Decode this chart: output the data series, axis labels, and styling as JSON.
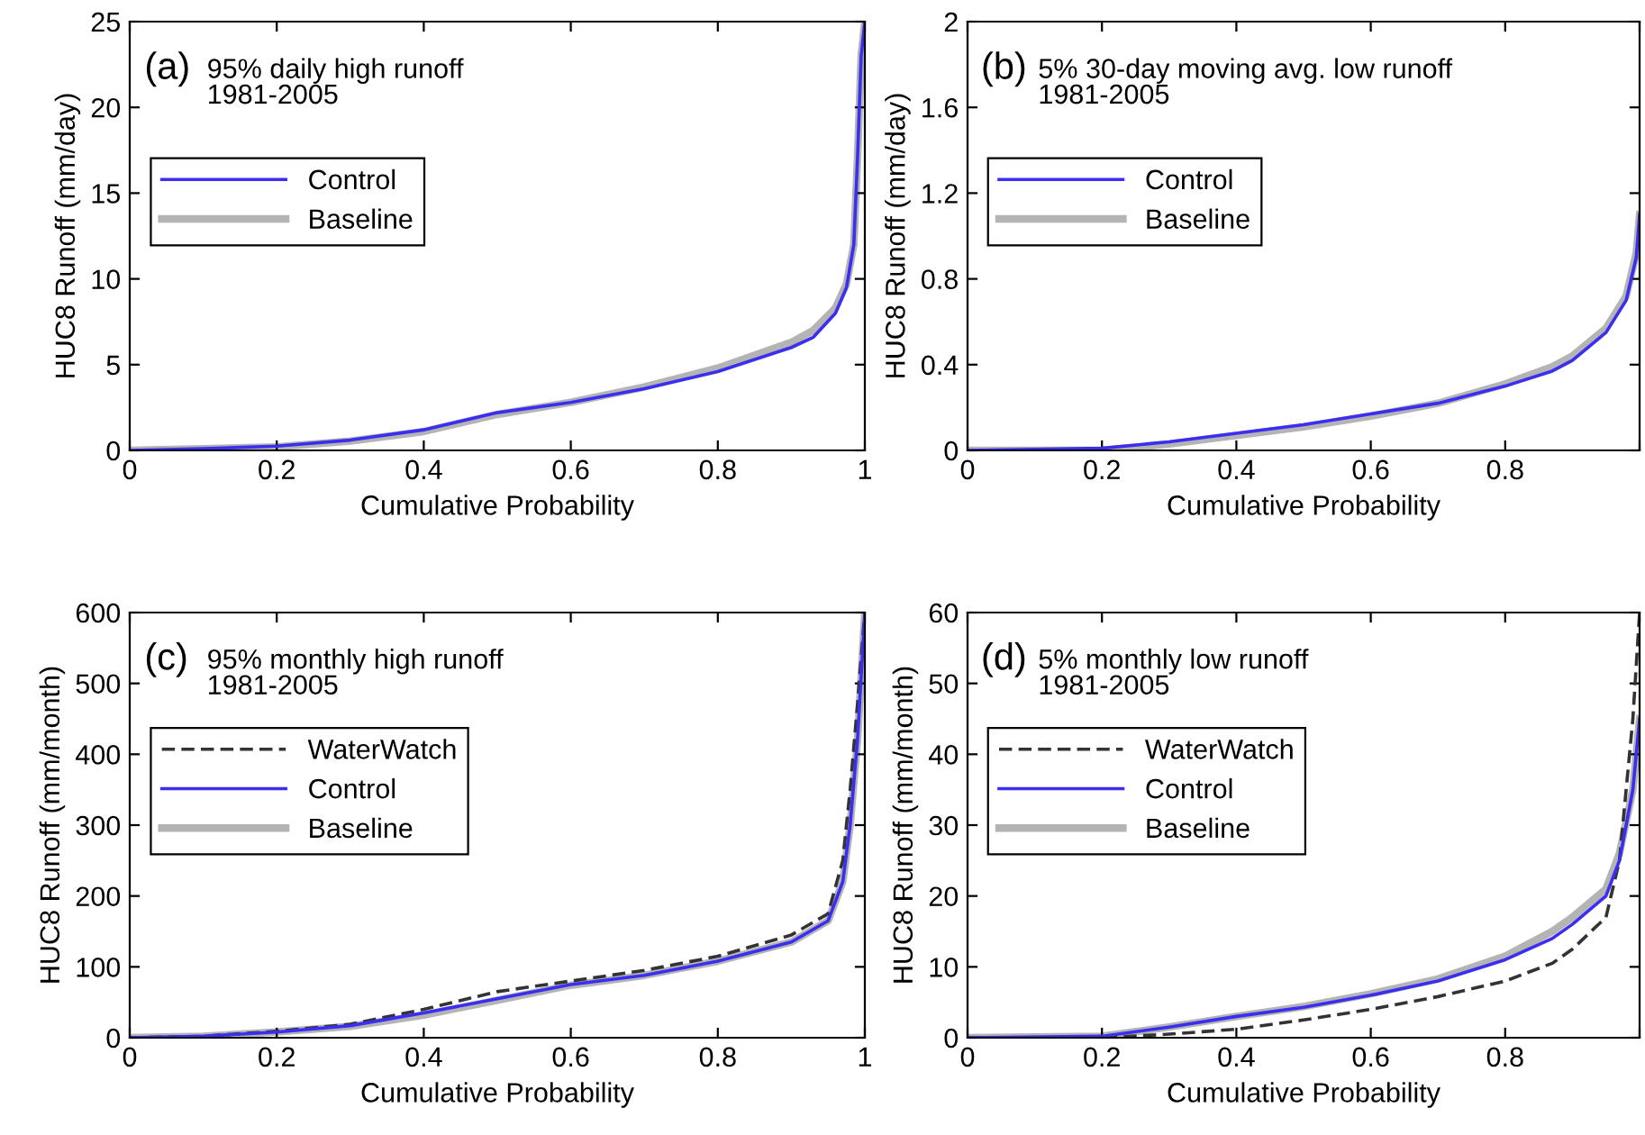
{
  "chart_data": [
    {
      "type": "line",
      "title": null,
      "annotations": [
        "(a)",
        "95% daily high runoff\n1981-2005"
      ],
      "xlabel": "Cumulative Probability",
      "ylabel": "HUC8 Runoff (mm/day)",
      "xlim": [
        0,
        1
      ],
      "xticks": [
        0,
        0.2,
        0.4,
        0.6,
        0.8,
        1
      ],
      "ylim": [
        0,
        25
      ],
      "yticks": [
        0,
        5,
        10,
        15,
        20,
        25
      ],
      "legend": "left",
      "grid": false,
      "marker": "none",
      "x": [
        0,
        0.1,
        0.2,
        0.3,
        0.4,
        0.5,
        0.6,
        0.7,
        0.8,
        0.9,
        0.93,
        0.96,
        0.975,
        0.985,
        0.99,
        0.995,
        1
      ],
      "series": [
        {
          "name": "Control",
          "color": "#3b2ef0",
          "line_style": "solid",
          "values": [
            0,
            0.1,
            0.25,
            0.6,
            1.2,
            2.2,
            2.8,
            3.6,
            4.6,
            6.0,
            6.6,
            8,
            9.5,
            12,
            17,
            23,
            25
          ]
        },
        {
          "name": "Baseline",
          "color": "#b4b4b4",
          "line_style": "solid",
          "values": [
            0,
            0.1,
            0.2,
            0.55,
            1.1,
            2.1,
            2.8,
            3.7,
            4.8,
            6.3,
            7.0,
            8.3,
            9.7,
            12,
            17,
            23,
            25
          ]
        }
      ]
    },
    {
      "type": "line",
      "annotations": [
        "(b)",
        "5% 30-day moving avg. low runoff\n1981-2005"
      ],
      "xlabel": "Cumulative Probability",
      "ylabel": "HUC8 Runoff (mm/day)",
      "xlim": [
        0,
        1
      ],
      "xticks": [
        0,
        0.2,
        0.4,
        0.6,
        0.8,
        {
          "value": 1,
          "label": null
        }
      ],
      "ylim": [
        0,
        2
      ],
      "yticks": [
        0,
        0.4,
        0.8,
        1.2,
        1.6,
        2
      ],
      "legend": "left",
      "grid": false,
      "marker": "none",
      "x": [
        0,
        0.2,
        0.3,
        0.4,
        0.5,
        0.6,
        0.7,
        0.8,
        0.87,
        0.9,
        0.95,
        0.98,
        0.995,
        1
      ],
      "series": [
        {
          "name": "Control",
          "color": "#3b2ef0",
          "line_style": "solid",
          "values": [
            0,
            0.01,
            0.04,
            0.08,
            0.12,
            0.17,
            0.22,
            0.3,
            0.37,
            0.42,
            0.55,
            0.7,
            0.9,
            1.1
          ]
        },
        {
          "name": "Baseline",
          "color": "#b4b4b4",
          "line_style": "solid",
          "values": [
            0,
            0,
            0.03,
            0.07,
            0.11,
            0.16,
            0.22,
            0.31,
            0.39,
            0.44,
            0.57,
            0.72,
            0.92,
            1.1
          ]
        }
      ]
    },
    {
      "type": "line",
      "annotations": [
        "(c)",
        "95% monthly high runoff\n1981-2005"
      ],
      "xlabel": "Cumulative Probability",
      "ylabel": "HUC8 Runoff (mm/month)",
      "xlim": [
        0,
        1
      ],
      "xticks": [
        0,
        0.2,
        0.4,
        0.6,
        0.8,
        1
      ],
      "ylim": [
        0,
        600
      ],
      "yticks": [
        0,
        100,
        200,
        300,
        400,
        500,
        600
      ],
      "legend": "left",
      "grid": false,
      "marker": "none",
      "x": [
        0,
        0.1,
        0.2,
        0.3,
        0.4,
        0.5,
        0.6,
        0.7,
        0.8,
        0.9,
        0.95,
        0.97,
        0.98,
        0.99,
        1
      ],
      "series": [
        {
          "name": "WaterWatch",
          "color": "#333333",
          "line_style": "dashed",
          "values": [
            0,
            2,
            9,
            19,
            40,
            65,
            80,
            95,
            115,
            145,
            175,
            250,
            350,
            470,
            600
          ]
        },
        {
          "name": "Control",
          "color": "#3b2ef0",
          "line_style": "solid",
          "values": [
            0,
            2,
            8,
            17,
            35,
            55,
            75,
            88,
            108,
            135,
            165,
            220,
            300,
            420,
            600
          ]
        },
        {
          "name": "Baseline",
          "color": "#b4b4b4",
          "line_style": "solid",
          "values": [
            0,
            2,
            8,
            16,
            32,
            53,
            74,
            88,
            108,
            135,
            165,
            220,
            300,
            420,
            600
          ]
        }
      ]
    },
    {
      "type": "line",
      "annotations": [
        "(d)",
        "5% monthly low runoff\n1981-2005"
      ],
      "xlabel": "Cumulative Probability",
      "ylabel": "HUC8 Runoff (mm/month)",
      "xlim": [
        0,
        1
      ],
      "xticks": [
        0,
        0.2,
        0.4,
        0.6,
        0.8,
        {
          "value": 1,
          "label": null
        }
      ],
      "ylim": [
        0,
        60
      ],
      "yticks": [
        0,
        10,
        20,
        30,
        40,
        50,
        60
      ],
      "legend": "left",
      "grid": false,
      "marker": "none",
      "x": [
        0,
        0.2,
        0.3,
        0.4,
        0.5,
        0.6,
        0.7,
        0.8,
        0.87,
        0.9,
        0.95,
        0.97,
        0.99,
        1
      ],
      "series": [
        {
          "name": "WaterWatch",
          "color": "#333333",
          "line_style": "dashed",
          "values": [
            0,
            0,
            0.5,
            1.2,
            2.5,
            4,
            5.8,
            8,
            10.5,
            12.5,
            17,
            25,
            45,
            60
          ]
        },
        {
          "name": "Control",
          "color": "#3b2ef0",
          "line_style": "solid",
          "values": [
            0,
            0.2,
            1.5,
            3,
            4.3,
            6,
            8,
            11,
            14,
            16,
            20,
            25,
            35,
            45
          ]
        },
        {
          "name": "Baseline",
          "color": "#b4b4b4",
          "line_style": "solid",
          "values": [
            0,
            0.2,
            1.5,
            3,
            4.4,
            6.2,
            8.3,
            11.5,
            15,
            17,
            21,
            26,
            35,
            45
          ]
        }
      ]
    }
  ]
}
